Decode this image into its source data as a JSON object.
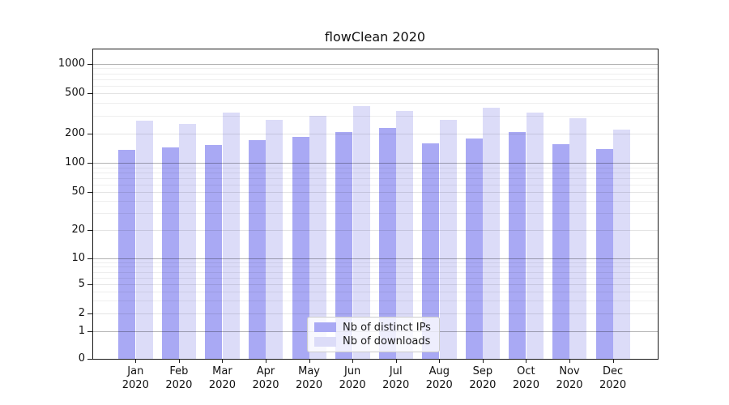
{
  "title": "flowClean 2020",
  "chart_data": {
    "type": "bar",
    "title": "flowClean 2020",
    "categories": [
      "Jan",
      "Feb",
      "Mar",
      "Apr",
      "May",
      "Jun",
      "Jul",
      "Aug",
      "Sep",
      "Oct",
      "Nov",
      "Dec"
    ],
    "year_label": "2020",
    "series": [
      {
        "name": "Nb of distinct IPs",
        "color": "#a9a9f4",
        "values": [
          137,
          145,
          153,
          172,
          185,
          207,
          226,
          159,
          179,
          206,
          157,
          140
        ]
      },
      {
        "name": "Nb of downloads",
        "color": "#dcdcf8",
        "values": [
          267,
          249,
          320,
          273,
          299,
          373,
          336,
          272,
          358,
          320,
          282,
          220
        ]
      }
    ],
    "yscale": "symlog",
    "yticks": [
      0,
      1,
      2,
      5,
      10,
      20,
      50,
      100,
      200,
      500,
      1000
    ],
    "ylim": [
      0,
      1440
    ],
    "grid": true,
    "legend_position": "lower center",
    "xlabel": "",
    "ylabel": ""
  }
}
